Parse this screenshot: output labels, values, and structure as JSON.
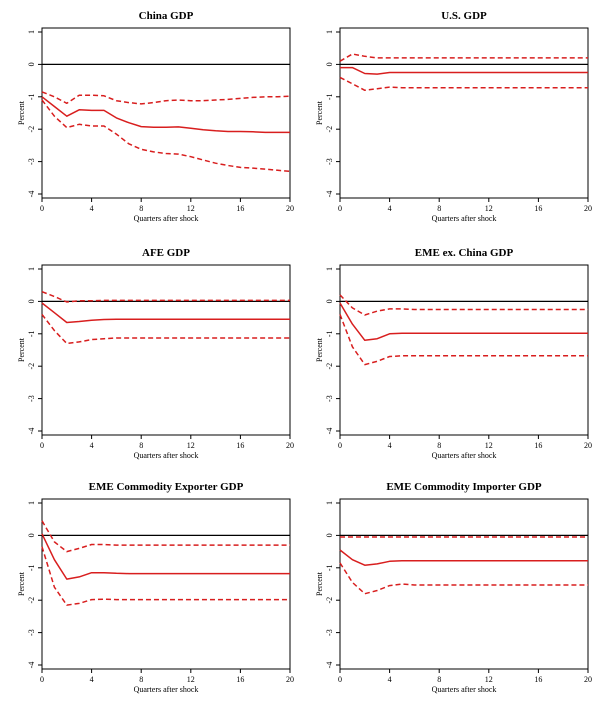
{
  "colors": {
    "series": "#d81e1e",
    "axis": "#000000",
    "background": "#ffffff"
  },
  "chart_data": [
    {
      "type": "line",
      "title": "China GDP",
      "xlabel": "Quarters after shock",
      "ylabel": "Percent",
      "xlim": [
        0,
        20
      ],
      "ylim": [
        -4,
        1
      ],
      "xticks": [
        0,
        4,
        8,
        12,
        16,
        20
      ],
      "yticks": [
        1,
        0,
        -1,
        -2,
        -3,
        -4
      ],
      "x": [
        0,
        1,
        2,
        3,
        4,
        5,
        6,
        7,
        8,
        9,
        10,
        11,
        12,
        13,
        14,
        15,
        16,
        17,
        18,
        19,
        20
      ],
      "series": [
        {
          "style": "solid",
          "values": [
            -1.0,
            -1.3,
            -1.6,
            -1.4,
            -1.42,
            -1.42,
            -1.65,
            -1.8,
            -1.92,
            -1.94,
            -1.94,
            -1.93,
            -1.97,
            -2.02,
            -2.05,
            -2.07,
            -2.07,
            -2.08,
            -2.1,
            -2.1,
            -2.1
          ]
        },
        {
          "style": "dashed",
          "values": [
            -0.85,
            -1.0,
            -1.2,
            -0.95,
            -0.95,
            -0.97,
            -1.12,
            -1.18,
            -1.22,
            -1.18,
            -1.12,
            -1.1,
            -1.12,
            -1.12,
            -1.1,
            -1.08,
            -1.05,
            -1.02,
            -1.0,
            -1.0,
            -0.98
          ]
        },
        {
          "style": "dashed",
          "values": [
            -1.1,
            -1.6,
            -1.95,
            -1.85,
            -1.9,
            -1.9,
            -2.15,
            -2.45,
            -2.62,
            -2.7,
            -2.75,
            -2.77,
            -2.85,
            -2.95,
            -3.05,
            -3.12,
            -3.18,
            -3.2,
            -3.23,
            -3.27,
            -3.3
          ]
        }
      ]
    },
    {
      "type": "line",
      "title": "U.S. GDP",
      "xlabel": "Quarters after shock",
      "ylabel": "Percent",
      "xlim": [
        0,
        20
      ],
      "ylim": [
        -4,
        1
      ],
      "xticks": [
        0,
        4,
        8,
        12,
        16,
        20
      ],
      "yticks": [
        1,
        0,
        -1,
        -2,
        -3,
        -4
      ],
      "x": [
        0,
        1,
        2,
        3,
        4,
        5,
        6,
        7,
        8,
        9,
        10,
        11,
        12,
        13,
        14,
        15,
        16,
        17,
        18,
        19,
        20
      ],
      "series": [
        {
          "style": "solid",
          "values": [
            -0.1,
            -0.1,
            -0.28,
            -0.3,
            -0.25,
            -0.25,
            -0.25,
            -0.25,
            -0.25,
            -0.25,
            -0.25,
            -0.25,
            -0.25,
            -0.25,
            -0.25,
            -0.25,
            -0.25,
            -0.25,
            -0.25,
            -0.25,
            -0.25
          ]
        },
        {
          "style": "dashed",
          "values": [
            0.1,
            0.32,
            0.25,
            0.2,
            0.2,
            0.2,
            0.2,
            0.2,
            0.2,
            0.2,
            0.2,
            0.2,
            0.2,
            0.2,
            0.2,
            0.2,
            0.2,
            0.2,
            0.2,
            0.2,
            0.2
          ]
        },
        {
          "style": "dashed",
          "values": [
            -0.4,
            -0.6,
            -0.8,
            -0.75,
            -0.7,
            -0.72,
            -0.72,
            -0.72,
            -0.72,
            -0.72,
            -0.72,
            -0.72,
            -0.72,
            -0.72,
            -0.72,
            -0.72,
            -0.72,
            -0.72,
            -0.72,
            -0.72,
            -0.72
          ]
        }
      ]
    },
    {
      "type": "line",
      "title": "AFE GDP",
      "xlabel": "Quarters after shock",
      "ylabel": "Percent",
      "xlim": [
        0,
        20
      ],
      "ylim": [
        -4,
        1
      ],
      "xticks": [
        0,
        4,
        8,
        12,
        16,
        20
      ],
      "yticks": [
        1,
        0,
        -1,
        -2,
        -3,
        -4
      ],
      "x": [
        0,
        1,
        2,
        3,
        4,
        5,
        6,
        7,
        8,
        9,
        10,
        11,
        12,
        13,
        14,
        15,
        16,
        17,
        18,
        19,
        20
      ],
      "series": [
        {
          "style": "solid",
          "values": [
            -0.05,
            -0.35,
            -0.65,
            -0.62,
            -0.58,
            -0.56,
            -0.55,
            -0.55,
            -0.55,
            -0.55,
            -0.55,
            -0.55,
            -0.55,
            -0.55,
            -0.55,
            -0.55,
            -0.55,
            -0.55,
            -0.55,
            -0.55,
            -0.55
          ]
        },
        {
          "style": "dashed",
          "values": [
            0.3,
            0.15,
            -0.02,
            0.02,
            0.02,
            0.03,
            0.03,
            0.03,
            0.03,
            0.03,
            0.03,
            0.03,
            0.03,
            0.03,
            0.03,
            0.03,
            0.03,
            0.03,
            0.03,
            0.03,
            0.03
          ]
        },
        {
          "style": "dashed",
          "values": [
            -0.4,
            -0.9,
            -1.3,
            -1.25,
            -1.18,
            -1.15,
            -1.13,
            -1.13,
            -1.13,
            -1.13,
            -1.13,
            -1.13,
            -1.13,
            -1.13,
            -1.13,
            -1.13,
            -1.13,
            -1.13,
            -1.13,
            -1.13,
            -1.13
          ]
        }
      ]
    },
    {
      "type": "line",
      "title": "EME ex. China GDP",
      "xlabel": "Quarters after shock",
      "ylabel": "Percent",
      "xlim": [
        0,
        20
      ],
      "ylim": [
        -4,
        1
      ],
      "xticks": [
        0,
        4,
        8,
        12,
        16,
        20
      ],
      "yticks": [
        1,
        0,
        -1,
        -2,
        -3,
        -4
      ],
      "x": [
        0,
        1,
        2,
        3,
        4,
        5,
        6,
        7,
        8,
        9,
        10,
        11,
        12,
        13,
        14,
        15,
        16,
        17,
        18,
        19,
        20
      ],
      "series": [
        {
          "style": "solid",
          "values": [
            -0.05,
            -0.7,
            -1.2,
            -1.15,
            -1.0,
            -0.98,
            -0.98,
            -0.98,
            -0.98,
            -0.98,
            -0.98,
            -0.98,
            -0.98,
            -0.98,
            -0.98,
            -0.98,
            -0.98,
            -0.98,
            -0.98,
            -0.98,
            -0.98
          ]
        },
        {
          "style": "dashed",
          "values": [
            0.2,
            -0.2,
            -0.42,
            -0.3,
            -0.23,
            -0.23,
            -0.25,
            -0.25,
            -0.25,
            -0.25,
            -0.25,
            -0.25,
            -0.25,
            -0.25,
            -0.25,
            -0.25,
            -0.25,
            -0.25,
            -0.25,
            -0.25,
            -0.25
          ]
        },
        {
          "style": "dashed",
          "values": [
            -0.4,
            -1.4,
            -1.95,
            -1.85,
            -1.7,
            -1.68,
            -1.68,
            -1.68,
            -1.68,
            -1.68,
            -1.68,
            -1.68,
            -1.68,
            -1.68,
            -1.68,
            -1.68,
            -1.68,
            -1.68,
            -1.68,
            -1.68,
            -1.68
          ]
        }
      ]
    },
    {
      "type": "line",
      "title": "EME Commodity Exporter GDP",
      "xlabel": "Quarters after shock",
      "ylabel": "Percent",
      "xlim": [
        0,
        20
      ],
      "ylim": [
        -4,
        1
      ],
      "xticks": [
        0,
        4,
        8,
        12,
        16,
        20
      ],
      "yticks": [
        1,
        0,
        -1,
        -2,
        -3,
        -4
      ],
      "x": [
        0,
        1,
        2,
        3,
        4,
        5,
        6,
        7,
        8,
        9,
        10,
        11,
        12,
        13,
        14,
        15,
        16,
        17,
        18,
        19,
        20
      ],
      "series": [
        {
          "style": "solid",
          "values": [
            0.05,
            -0.75,
            -1.35,
            -1.28,
            -1.15,
            -1.15,
            -1.17,
            -1.18,
            -1.18,
            -1.18,
            -1.18,
            -1.18,
            -1.18,
            -1.18,
            -1.18,
            -1.18,
            -1.18,
            -1.18,
            -1.18,
            -1.18,
            -1.18
          ]
        },
        {
          "style": "dashed",
          "values": [
            0.45,
            -0.2,
            -0.5,
            -0.4,
            -0.28,
            -0.28,
            -0.3,
            -0.3,
            -0.3,
            -0.3,
            -0.3,
            -0.3,
            -0.3,
            -0.3,
            -0.3,
            -0.3,
            -0.3,
            -0.3,
            -0.3,
            -0.3,
            -0.3
          ]
        },
        {
          "style": "dashed",
          "values": [
            -0.35,
            -1.6,
            -2.15,
            -2.1,
            -1.98,
            -1.97,
            -1.98,
            -1.98,
            -1.98,
            -1.98,
            -1.98,
            -1.98,
            -1.98,
            -1.98,
            -1.98,
            -1.98,
            -1.98,
            -1.98,
            -1.98,
            -1.98,
            -1.98
          ]
        }
      ]
    },
    {
      "type": "line",
      "title": "EME Commodity Importer GDP",
      "xlabel": "Quarters after shock",
      "ylabel": "Percent",
      "xlim": [
        0,
        20
      ],
      "ylim": [
        -4,
        1
      ],
      "xticks": [
        0,
        4,
        8,
        12,
        16,
        20
      ],
      "yticks": [
        1,
        0,
        -1,
        -2,
        -3,
        -4
      ],
      "x": [
        0,
        1,
        2,
        3,
        4,
        5,
        6,
        7,
        8,
        9,
        10,
        11,
        12,
        13,
        14,
        15,
        16,
        17,
        18,
        19,
        20
      ],
      "series": [
        {
          "style": "solid",
          "values": [
            -0.45,
            -0.75,
            -0.92,
            -0.88,
            -0.8,
            -0.78,
            -0.78,
            -0.78,
            -0.78,
            -0.78,
            -0.78,
            -0.78,
            -0.78,
            -0.78,
            -0.78,
            -0.78,
            -0.78,
            -0.78,
            -0.78,
            -0.78,
            -0.78
          ]
        },
        {
          "style": "dashed",
          "values": [
            -0.05,
            -0.05,
            -0.05,
            -0.05,
            -0.05,
            -0.05,
            -0.05,
            -0.05,
            -0.05,
            -0.05,
            -0.05,
            -0.05,
            -0.05,
            -0.05,
            -0.05,
            -0.05,
            -0.05,
            -0.05,
            -0.05,
            -0.05,
            -0.05
          ]
        },
        {
          "style": "dashed",
          "values": [
            -0.85,
            -1.45,
            -1.8,
            -1.7,
            -1.55,
            -1.5,
            -1.53,
            -1.53,
            -1.53,
            -1.53,
            -1.53,
            -1.53,
            -1.53,
            -1.53,
            -1.53,
            -1.53,
            -1.53,
            -1.53,
            -1.53,
            -1.53,
            -1.53
          ]
        }
      ]
    }
  ]
}
